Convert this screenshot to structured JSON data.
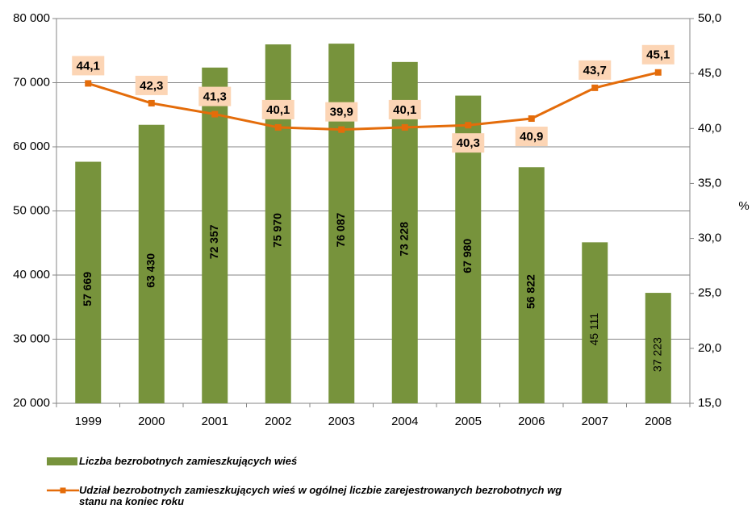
{
  "chart_data": {
    "type": "bar+line",
    "categories": [
      "1999",
      "2000",
      "2001",
      "2002",
      "2003",
      "2004",
      "2005",
      "2006",
      "2007",
      "2008"
    ],
    "series": [
      {
        "name": "Liczba bezrobotnych zamieszkujących wieś",
        "type": "bar",
        "axis": "y",
        "color": "#77933c",
        "values": [
          57669,
          63430,
          72357,
          75970,
          76087,
          73228,
          67980,
          56822,
          45111,
          37223
        ],
        "value_labels": [
          "57 669",
          "63 430",
          "72 357",
          "75 970",
          "76 087",
          "73 228",
          "67 980",
          "56 822",
          "45 111",
          "37 223"
        ]
      },
      {
        "name": "Udział bezrobotnych zamieszkujących wieś w ogólnej liczbie zarejestrowanych bezrobotnych wg stanu na koniec roku",
        "type": "line",
        "axis": "y2",
        "color": "#e46c0a",
        "values": [
          44.1,
          42.3,
          41.3,
          40.1,
          39.9,
          40.1,
          40.3,
          40.9,
          43.7,
          45.1
        ],
        "value_labels": [
          "44,1",
          "42,3",
          "41,3",
          "40,1",
          "39,9",
          "40,1",
          "40,3",
          "40,9",
          "43,7",
          "45,1"
        ]
      }
    ],
    "ylim": [
      20000,
      80000
    ],
    "yticks": [
      {
        "value": 20000,
        "label": "20 000"
      },
      {
        "value": 30000,
        "label": "30 000"
      },
      {
        "value": 40000,
        "label": "40 000"
      },
      {
        "value": 50000,
        "label": "50 000"
      },
      {
        "value": 60000,
        "label": "60 000"
      },
      {
        "value": 70000,
        "label": "70 000"
      },
      {
        "value": 80000,
        "label": "80 000"
      }
    ],
    "y2lim": [
      15,
      50
    ],
    "y2ticks": [
      {
        "value": 15,
        "label": "15,0"
      },
      {
        "value": 20,
        "label": "20,0"
      },
      {
        "value": 25,
        "label": "25,0"
      },
      {
        "value": 30,
        "label": "30,0"
      },
      {
        "value": 35,
        "label": "35,0"
      },
      {
        "value": 40,
        "label": "40,0"
      },
      {
        "value": 45,
        "label": "45,0"
      },
      {
        "value": 50,
        "label": "50,0"
      }
    ],
    "y2label": "%",
    "grid": true
  }
}
